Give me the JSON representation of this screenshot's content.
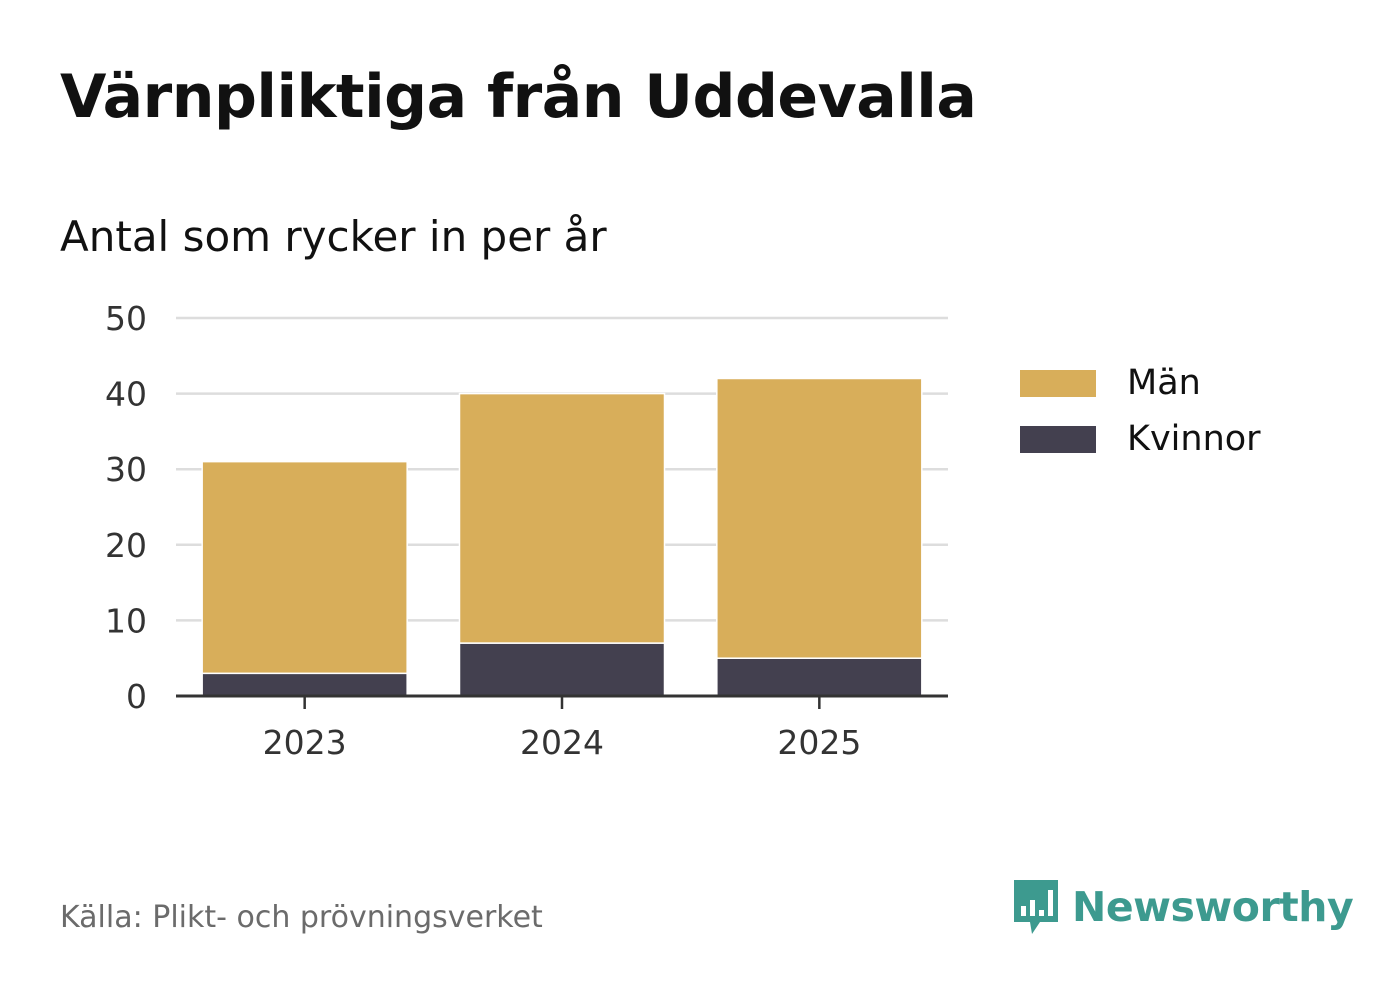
{
  "header": {
    "title": "Värnpliktiga från Uddevalla",
    "subtitle": "Antal som rycker in per år"
  },
  "chart_data": {
    "type": "bar",
    "stacked": true,
    "categories": [
      "2023",
      "2024",
      "2025"
    ],
    "series": [
      {
        "name": "Kvinnor",
        "values": [
          3,
          7,
          5
        ],
        "color": "#43404f"
      },
      {
        "name": "Män",
        "values": [
          28,
          33,
          37
        ],
        "color": "#d8ae5a"
      }
    ],
    "ylim": [
      0,
      50
    ],
    "yticks": [
      0,
      10,
      20,
      30,
      40,
      50
    ],
    "title": "Värnpliktiga från Uddevalla",
    "xlabel": "",
    "ylabel": "",
    "grid": true,
    "legend_placement": "right"
  },
  "legend": {
    "items": [
      {
        "label": "Män",
        "color": "#d8ae5a"
      },
      {
        "label": "Kvinnor",
        "color": "#43404f"
      }
    ]
  },
  "footer": {
    "source": "Källa: Plikt- och prövningsverket",
    "brand": "Newsworthy",
    "brand_color": "#3d9a8f"
  },
  "colors": {
    "grid": "#dddddd",
    "axis": "#333333"
  }
}
